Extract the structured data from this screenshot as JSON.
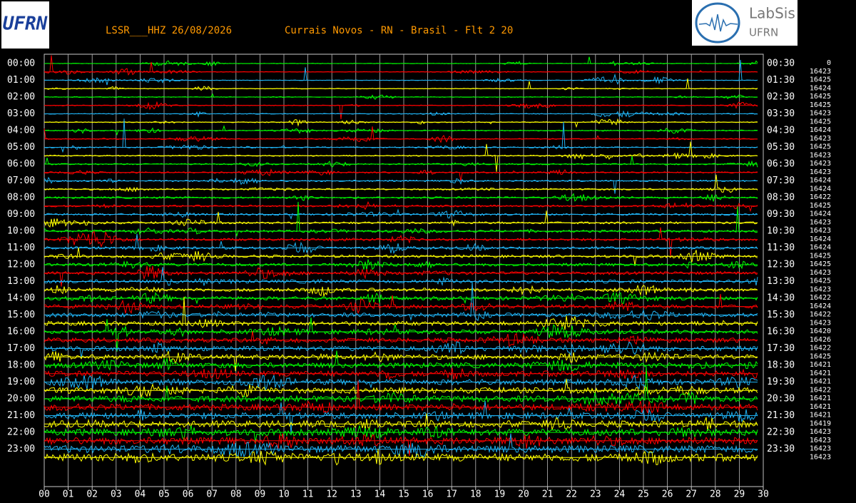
{
  "header": {
    "station": "LSSR___HHZ 26/08/2026",
    "location": "Currais Novos - RN - Brasil - Flt 2 20",
    "logo_left": "UFRN",
    "logo_right_top": "LabSis",
    "logo_right_bottom": "UFRN"
  },
  "left_labels": [
    "00:00",
    "01:00",
    "02:00",
    "03:00",
    "04:00",
    "05:00",
    "06:00",
    "07:00",
    "08:00",
    "09:00",
    "10:00",
    "11:00",
    "12:00",
    "13:00",
    "14:00",
    "15:00",
    "16:00",
    "17:00",
    "18:00",
    "19:00",
    "20:00",
    "21:00",
    "22:00",
    "23:00"
  ],
  "right_labels": [
    "00:30",
    "01:30",
    "02:30",
    "03:30",
    "04:30",
    "05:30",
    "06:30",
    "07:30",
    "08:30",
    "09:30",
    "10:30",
    "11:30",
    "12:30",
    "13:30",
    "14:30",
    "15:30",
    "16:30",
    "17:30",
    "18:30",
    "19:30",
    "20:30",
    "21:30",
    "22:30",
    "23:30"
  ],
  "trace_counts": [
    0,
    16423,
    16425,
    16424,
    16425,
    16425,
    16423,
    16425,
    16424,
    16423,
    16425,
    16423,
    16423,
    16423,
    16424,
    16424,
    16422,
    16425,
    16424,
    16423,
    16423,
    16424,
    16424,
    16425,
    16425,
    16423,
    16425,
    16423,
    16422,
    16424,
    16422,
    16423,
    16420,
    16426,
    16422,
    16425,
    16421,
    16421,
    16421,
    16422,
    16421,
    16421,
    16421,
    16419,
    16423,
    16423,
    16423,
    16423
  ],
  "x_labels": [
    "00",
    "01",
    "02",
    "03",
    "04",
    "05",
    "06",
    "07",
    "08",
    "09",
    "10",
    "11",
    "12",
    "13",
    "14",
    "15",
    "16",
    "17",
    "18",
    "19",
    "20",
    "21",
    "22",
    "23",
    "24",
    "25",
    "26",
    "27",
    "28",
    "29",
    "30"
  ]
}
